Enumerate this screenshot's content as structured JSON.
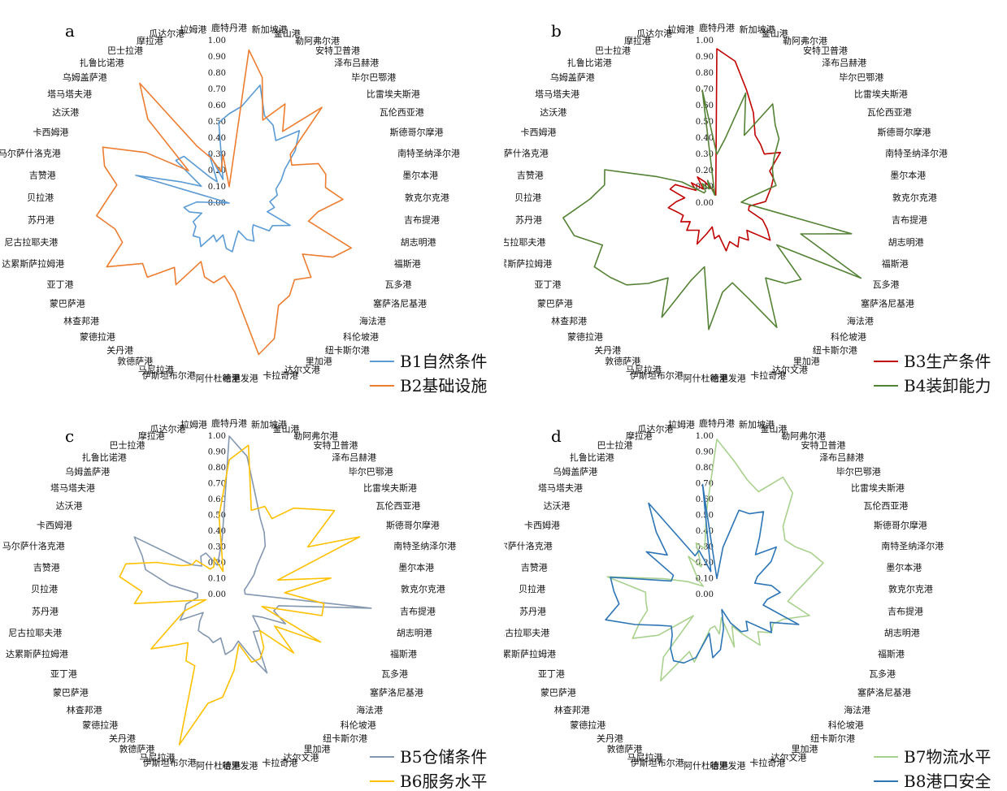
{
  "categories": [
    "鹿特丹港",
    "新加坡港",
    "釜山港",
    "勒阿弗尔港",
    "安特卫普港",
    "泽布吕赫港",
    "毕尔巴鄂港",
    "比雷埃夫斯港",
    "瓦伦西亚港",
    "斯德哥尔摩港",
    "南特圣纳泽尔港",
    "墨尔本港",
    "敦克尔克港",
    "吉布提港",
    "胡志明港",
    "福斯港",
    "瓦多港",
    "塞萨洛尼基港",
    "海法港",
    "科伦坡港",
    "纽卡斯尔港",
    "里加港",
    "达尔文港",
    "卡拉奇港",
    "哈里发港",
    "阿什杜德港",
    "伊斯坦布尔港",
    "马尼拉港",
    "敦德萨港",
    "关丹港",
    "蒙德拉港",
    "林查邦港",
    "蒙巴萨港",
    "亚丁港",
    "达累斯萨拉姆港",
    "尼古拉耶夫港",
    "苏丹港",
    "贝拉港",
    "吉赞港",
    "马尔萨什洛克港",
    "卡西姆港",
    "达沃港",
    "塔马塔夫港",
    "乌姆盖萨港",
    "扎鲁比诺港",
    "巴士拉港",
    "摩拉港",
    "瓜达尔港",
    "拉姆港"
  ],
  "ticks": [
    "0.00",
    "0.10",
    "0.20",
    "0.30",
    "0.40",
    "0.50",
    "0.60",
    "0.70",
    "0.80",
    "0.90",
    "1.00"
  ],
  "chart_data": [
    {
      "type": "radar",
      "panel": "a",
      "ylim": [
        0,
        1
      ],
      "series": [
        {
          "name": "B1自然条件",
          "color": "#5b9bd5",
          "values": [
            0.55,
            0.6,
            0.75,
            0.58,
            0.55,
            0.48,
            0.62,
            0.52,
            0.4,
            0.35,
            0.3,
            0.3,
            0.25,
            0.28,
            0.24,
            0.4,
            0.3,
            0.3,
            0.2,
            0.22,
            0.28,
            0.25,
            0.18,
            0.22,
            0.3,
            0.28,
            0.2,
            0.25,
            0.22,
            0.32,
            0.28,
            0.3,
            0.25,
            0.25,
            0.18,
            0.25,
            0.28,
            0.2,
            0.0,
            0.6,
            0.32,
            0.2,
            0.42,
            0.4,
            0.2,
            0.15,
            0.33,
            0.15,
            0.5
          ]
        },
        {
          "name": "B2基础设施",
          "color": "#ed7d31",
          "values": [
            0.1,
            0.95,
            0.8,
            0.55,
            0.7,
            0.55,
            0.82,
            0.48,
            0.45,
            0.6,
            0.62,
            0.6,
            0.7,
            0.55,
            0.5,
            0.8,
            0.72,
            0.55,
            0.68,
            0.62,
            0.68,
            0.7,
            0.88,
            0.95,
            0.55,
            0.45,
            0.5,
            0.48,
            0.4,
            0.6,
            0.52,
            0.68,
            0.65,
            0.85,
            0.7,
            0.72,
            0.82,
            0.75,
            0.7,
            0.8,
            0.85,
            0.6,
            0.32,
            0.72,
            0.92,
            0.4,
            0.3,
            0.2,
            0.3
          ]
        }
      ]
    },
    {
      "type": "radar",
      "panel": "b",
      "ylim": [
        0,
        1
      ],
      "series": [
        {
          "name": "B3生产条件",
          "color": "#c00000",
          "values": [
            0.95,
            0.88,
            0.72,
            0.6,
            0.48,
            0.45,
            0.42,
            0.5,
            0.38,
            0.38,
            0.35,
            0.32,
            0.3,
            0.2,
            0.2,
            0.3,
            0.35,
            0.4,
            0.25,
            0.3,
            0.25,
            0.3,
            0.25,
            0.3,
            0.2,
            0.22,
            0.15,
            0.2,
            0.28,
            0.2,
            0.22,
            0.25,
            0.2,
            0.25,
            0.22,
            0.25,
            0.3,
            0.25,
            0.2,
            0.3,
            0.28,
            0.15,
            0.2,
            0.12,
            0.2,
            0.15,
            0.1,
            0.08,
            0.05
          ]
        },
        {
          "name": "B4装卸能力",
          "color": "#548235",
          "values": [
            0.3,
            0.4,
            0.7,
            0.45,
            0.7,
            0.6,
            0.55,
            0.45,
            0.4,
            0.38,
            0.38,
            0.2,
            0.15,
            0.25,
            0.85,
            0.55,
            1.0,
            0.45,
            0.7,
            0.65,
            0.55,
            0.85,
            0.62,
            0.5,
            0.55,
            0.78,
            0.4,
            0.5,
            0.78,
            0.55,
            0.65,
            0.75,
            0.8,
            0.85,
            0.75,
            0.9,
            0.95,
            0.78,
            0.7,
            0.72,
            0.4,
            0.25,
            0.1,
            0.1,
            0.15,
            0.1,
            0.15,
            0.05,
            0.7
          ]
        }
      ]
    },
    {
      "type": "radar",
      "panel": "c",
      "ylim": [
        0,
        1
      ],
      "series": [
        {
          "name": "B5仓储条件",
          "color": "#8497b0",
          "values": [
            1.0,
            0.88,
            0.65,
            0.52,
            0.45,
            0.38,
            0.25,
            0.2,
            0.15,
            0.12,
            0.1,
            0.1,
            0.1,
            0.9,
            0.32,
            0.3,
            0.4,
            0.25,
            0.2,
            0.3,
            0.28,
            0.55,
            0.4,
            0.3,
            0.35,
            0.38,
            0.28,
            0.32,
            0.3,
            0.3,
            0.3,
            0.25,
            0.2,
            0.35,
            0.3,
            0.28,
            0.2,
            0.2,
            0.38,
            0.55,
            0.6,
            0.7,
            0.3,
            0.25,
            0.3,
            0.3,
            0.2,
            0.25,
            0.35
          ]
        },
        {
          "name": "B6服务水平",
          "color": "#ffc000",
          "values": [
            0.85,
            0.95,
            0.55,
            0.6,
            0.55,
            0.68,
            0.75,
            0.85,
            0.58,
            0.9,
            0.32,
            0.65,
            0.35,
            0.6,
            0.6,
            0.22,
            0.65,
            0.35,
            0.55,
            0.3,
            0.4,
            0.45,
            0.45,
            0.32,
            0.48,
            0.65,
            0.7,
            1.0,
            0.5,
            0.5,
            0.4,
            0.48,
            0.6,
            0.4,
            0.3,
            0.15,
            0.6,
            0.55,
            0.7,
            0.68,
            0.5,
            0.35,
            0.3,
            0.3,
            0.2,
            0.2,
            0.25,
            0.15,
            0.5
          ]
        }
      ]
    },
    {
      "type": "radar",
      "panel": "d",
      "ylim": [
        0,
        1
      ],
      "series": [
        {
          "name": "B7物流水平",
          "color": "#a9d18e",
          "values": [
            0.98,
            0.85,
            0.75,
            0.7,
            0.85,
            0.8,
            0.6,
            0.55,
            0.58,
            0.65,
            0.7,
            0.58,
            0.5,
            0.45,
            0.6,
            0.45,
            0.4,
            0.42,
            0.35,
            0.42,
            0.3,
            0.22,
            0.35,
            0.15,
            0.25,
            0.2,
            0.22,
            0.45,
            0.4,
            0.65,
            0.52,
            0.2,
            0.45,
            0.6,
            0.52,
            0.45,
            0.45,
            0.45,
            0.7,
            0.35,
            0.2,
            0.1,
            0.15,
            0.2,
            0.3,
            0.2,
            0.35,
            0.3,
            0.52
          ]
        },
        {
          "name": "B8港口安全",
          "color": "#2e75b6",
          "values": [
            0.1,
            0.3,
            0.55,
            0.55,
            0.6,
            0.45,
            0.35,
            0.48,
            0.4,
            0.28,
            0.25,
            0.35,
            0.4,
            0.32,
            0.3,
            0.55,
            0.38,
            0.42,
            0.25,
            0.3,
            0.28,
            0.2,
            0.1,
            0.22,
            0.35,
            0.4,
            0.25,
            0.42,
            0.48,
            0.5,
            0.45,
            0.38,
            0.35,
            0.42,
            0.55,
            0.72,
            0.62,
            0.65,
            0.68,
            0.3,
            0.3,
            0.52,
            0.4,
            0.55,
            0.72,
            0.28,
            0.3,
            0.15,
            0.7
          ]
        }
      ]
    }
  ]
}
